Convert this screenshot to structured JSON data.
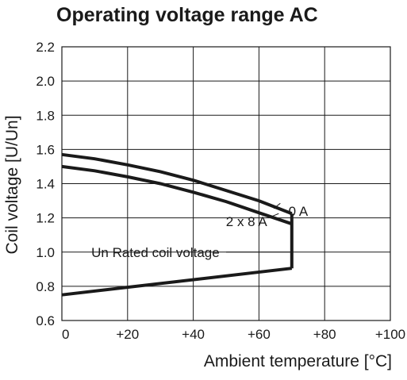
{
  "chart_data": {
    "type": "line",
    "title": "Operating voltage range AC",
    "xlabel": "Ambient temperature [°C]",
    "ylabel": "Coil voltage [U/Un]",
    "xlim": [
      0,
      100
    ],
    "ylim": [
      0.6,
      2.2
    ],
    "xticks": [
      0,
      20,
      40,
      60,
      80,
      100
    ],
    "xtick_labels": [
      "0",
      "+20",
      "+40",
      "+60",
      "+80",
      "+100"
    ],
    "yticks": [
      0.6,
      0.8,
      1.0,
      1.2,
      1.4,
      1.6,
      1.8,
      2.0,
      2.2
    ],
    "ytick_labels": [
      "0.6",
      "0.8",
      "1.0",
      "1.2",
      "1.4",
      "1.6",
      "1.8",
      "2.0",
      "2.2"
    ],
    "grid": true,
    "series": [
      {
        "name": "0 A",
        "x": [
          0,
          10,
          20,
          30,
          40,
          50,
          60,
          70
        ],
        "y": [
          1.57,
          1.545,
          1.51,
          1.47,
          1.42,
          1.36,
          1.3,
          1.225
        ]
      },
      {
        "name": "2 x 8 A",
        "x": [
          0,
          10,
          20,
          30,
          40,
          50,
          60,
          70
        ],
        "y": [
          1.5,
          1.475,
          1.44,
          1.4,
          1.35,
          1.295,
          1.23,
          1.165
        ]
      },
      {
        "name": "",
        "x": [
          0,
          70
        ],
        "y": [
          0.75,
          0.905
        ]
      },
      {
        "name": "",
        "x": [
          70,
          70
        ],
        "y": [
          0.905,
          1.225
        ]
      }
    ],
    "annotations": [
      {
        "text": "0 A",
        "x": 69,
        "y": 1.24
      },
      {
        "text": "2 x 8 A",
        "x": 62.5,
        "y": 1.18
      },
      {
        "text": "Un Rated coil voltage",
        "x": 48,
        "y": 1.0
      }
    ]
  }
}
